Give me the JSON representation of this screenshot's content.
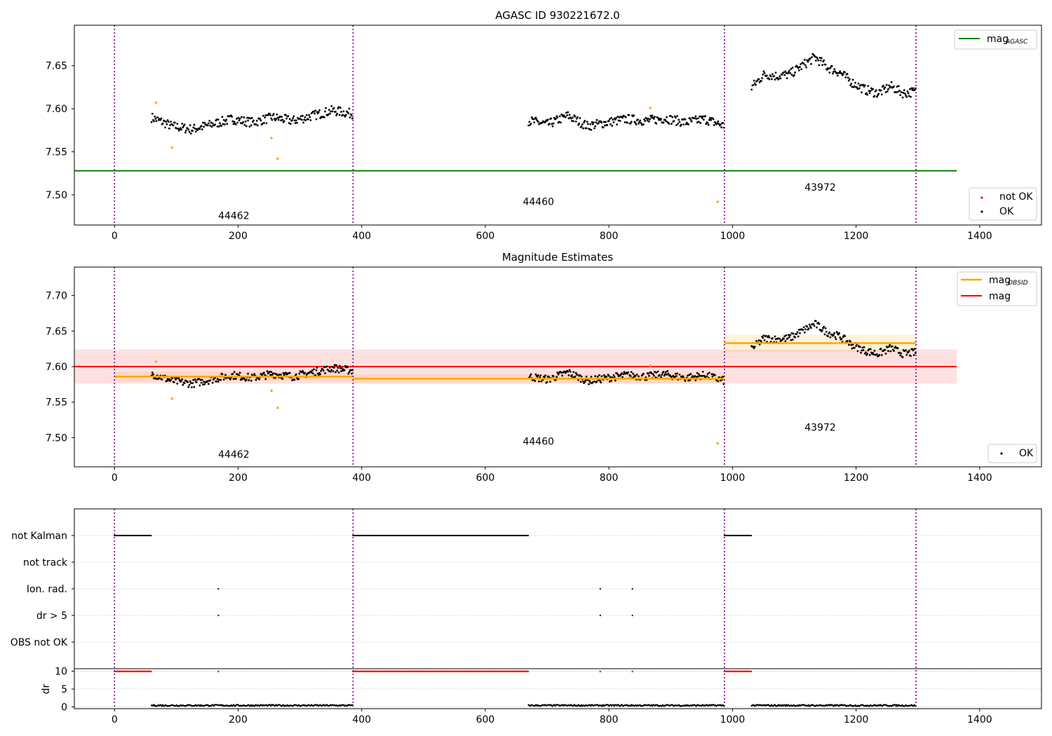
{
  "chart_data": [
    {
      "type": "scatter",
      "title": "AGASC ID 930221672.0",
      "xlim": [
        -65,
        1500
      ],
      "ylim": [
        7.465,
        7.697
      ],
      "xticks": [
        0,
        200,
        400,
        600,
        800,
        1000,
        1200,
        1400
      ],
      "yticks": [
        7.5,
        7.55,
        7.6,
        7.65
      ],
      "ytick_labels": [
        "7.50",
        "7.55",
        "7.60",
        "7.65"
      ],
      "obs_boundaries": [
        0,
        386,
        987,
        1297
      ],
      "obs_labels": [
        {
          "x": 193,
          "y": 7.472,
          "text": "44462"
        },
        {
          "x": 686,
          "y": 7.488,
          "text": "44460"
        },
        {
          "x": 1142,
          "y": 7.505,
          "text": "43972"
        }
      ],
      "hlines": [
        {
          "name": "mag_AGASC",
          "y": 7.528,
          "x0": -65,
          "x1": 1363,
          "color": "#008000"
        }
      ],
      "ok_segments": [
        {
          "x0": 60,
          "x1": 386,
          "pattern": [
            7.59,
            7.58,
            7.576,
            7.582,
            7.588,
            7.584,
            7.59,
            7.586,
            7.592,
            7.598,
            7.594
          ]
        },
        {
          "x0": 670,
          "x1": 987,
          "pattern": [
            7.586,
            7.582,
            7.592,
            7.58,
            7.584,
            7.588,
            7.586,
            7.589,
            7.584,
            7.588,
            7.58
          ]
        },
        {
          "x0": 1031,
          "x1": 1297,
          "pattern": [
            7.625,
            7.64,
            7.638,
            7.64,
            7.65,
            7.66,
            7.648,
            7.642,
            7.63,
            7.622,
            7.618,
            7.626,
            7.618,
            7.62
          ]
        }
      ],
      "not_ok_points": [
        {
          "x": 67,
          "y": 7.607
        },
        {
          "x": 93,
          "y": 7.555
        },
        {
          "x": 254,
          "y": 7.566
        },
        {
          "x": 264,
          "y": 7.542
        },
        {
          "x": 867,
          "y": 7.601
        },
        {
          "x": 976,
          "y": 7.492
        }
      ],
      "legend_upper": [
        {
          "label": "mag",
          "subscript": "AGASC",
          "color": "#008000"
        }
      ],
      "legend_lower": [
        {
          "label": "not OK",
          "color": "#ff0000"
        },
        {
          "label": "OK",
          "color": "#000000"
        }
      ]
    },
    {
      "type": "scatter",
      "title": "Magnitude Estimates",
      "xlim": [
        -65,
        1500
      ],
      "ylim": [
        7.459,
        7.74
      ],
      "xticks": [
        0,
        200,
        400,
        600,
        800,
        1000,
        1200,
        1400
      ],
      "yticks": [
        7.5,
        7.55,
        7.6,
        7.65,
        7.7
      ],
      "ytick_labels": [
        "7.50",
        "7.55",
        "7.60",
        "7.65",
        "7.70"
      ],
      "obs_labels": [
        {
          "x": 193,
          "y": 7.472,
          "text": "44462"
        },
        {
          "x": 686,
          "y": 7.49,
          "text": "44460"
        },
        {
          "x": 1142,
          "y": 7.51,
          "text": "43972"
        }
      ],
      "mag": {
        "y": 7.6,
        "band": [
          7.576,
          7.624
        ],
        "x0": -65,
        "x1": 1363,
        "color": "#ff0000"
      },
      "mag_obsid": [
        {
          "x0": 0,
          "x1": 386,
          "y": 7.586,
          "band": [
            7.58,
            7.592
          ]
        },
        {
          "x0": 386,
          "x1": 987,
          "y": 7.583,
          "band": [
            7.577,
            7.589
          ]
        },
        {
          "x0": 987,
          "x1": 1297,
          "y": 7.633,
          "band": [
            7.621,
            7.645
          ]
        }
      ],
      "legend_upper": [
        {
          "label": "mag",
          "subscript": "OBSID",
          "color": "#ffa500"
        },
        {
          "label": "mag",
          "color": "#ff0000"
        }
      ],
      "legend_lower": [
        {
          "label": "OK",
          "color": "#000000"
        }
      ]
    },
    {
      "type": "scatter",
      "xlim": [
        -65,
        1500
      ],
      "flag_rows": [
        "not Kalman",
        "not track",
        "Ion. rad.",
        "dr > 5",
        "OBS not OK"
      ],
      "flag_points": {
        "not Kalman": [
          [
            0,
            60
          ],
          [
            386,
            670
          ],
          [
            987,
            1031
          ]
        ],
        "not track": [],
        "Ion. rad.": [
          168,
          786,
          838
        ],
        "dr > 5": [
          168,
          786,
          838
        ],
        "OBS not OK": []
      },
      "dr_ylabel": "dr",
      "dr_ylim": [
        -0.5,
        10.5
      ],
      "dr_yticks": [
        0,
        5,
        10
      ],
      "dr_high": {
        "y": 10,
        "segments": [
          [
            0,
            60
          ],
          [
            386,
            670
          ],
          [
            987,
            1031
          ]
        ],
        "points": [
          168,
          786,
          838
        ],
        "color": "#ff0000"
      },
      "dr_low": {
        "y": 0.4,
        "segments": [
          [
            60,
            386
          ],
          [
            670,
            987
          ],
          [
            1031,
            1297
          ]
        ],
        "color": "#000000"
      },
      "xticks": [
        0,
        200,
        400,
        600,
        800,
        1000,
        1200,
        1400
      ]
    }
  ]
}
